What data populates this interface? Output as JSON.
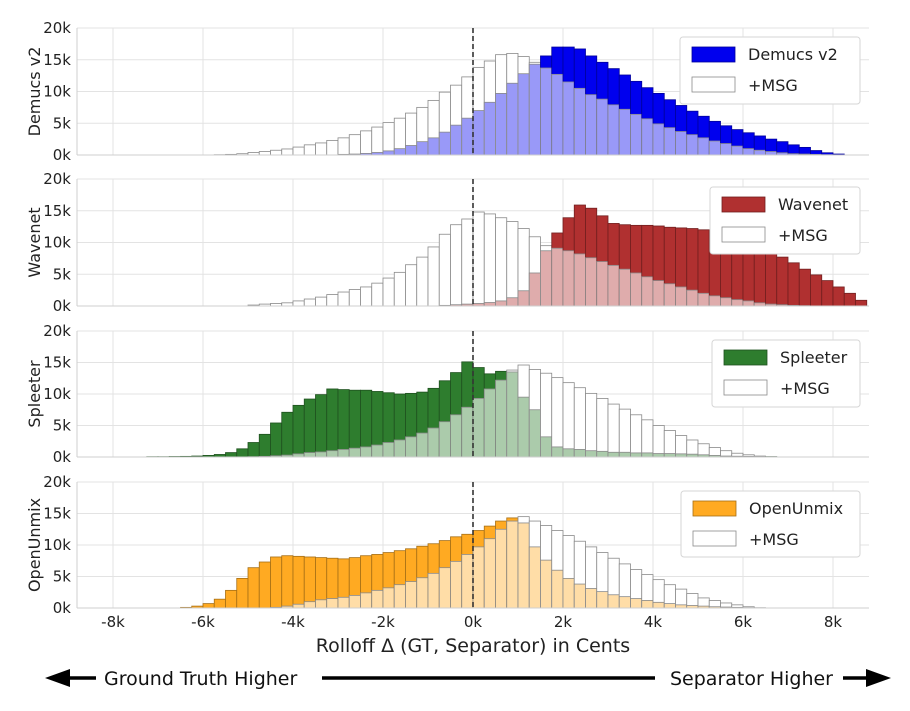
{
  "chart_data": {
    "type": "bar",
    "xlabel": "Rolloff Δ (GT, Separator) in Cents",
    "x_ticks": [
      "-8k",
      "-6k",
      "-4k",
      "-2k",
      "0k",
      "2k",
      "4k",
      "6k",
      "8k"
    ],
    "x_tick_values": [
      -8000,
      -6000,
      -4000,
      -2000,
      0,
      2000,
      4000,
      6000,
      8000
    ],
    "xlim": [
      -8800,
      8800
    ],
    "ylim": [
      0,
      20000
    ],
    "y_ticks": [
      "0k",
      "5k",
      "10k",
      "15k",
      "20k"
    ],
    "y_tick_values": [
      0,
      5000,
      10000,
      15000,
      20000
    ],
    "grid": true,
    "reference_line_x": 0,
    "bin_width": 250,
    "panels": [
      {
        "ylabel": "Demucs v2",
        "legend": [
          "Demucs v2",
          "+MSG"
        ],
        "color": "#0000ee",
        "base": {
          "start": -5750,
          "values": [
            0,
            0,
            0,
            0,
            0,
            0,
            0,
            0,
            0,
            0,
            0,
            100,
            150,
            250,
            400,
            650,
            1000,
            1500,
            2100,
            2700,
            3600,
            4700,
            5800,
            7000,
            8300,
            9700,
            11300,
            12800,
            14300,
            15600,
            17000,
            17000,
            16700,
            15600,
            14600,
            13600,
            12600,
            11600,
            10600,
            9700,
            8700,
            7800,
            6900,
            6100,
            5300,
            4600,
            4000,
            3500,
            3000,
            2500,
            2100,
            1600,
            1200,
            700,
            350,
            150
          ]
        },
        "msg": {
          "start": -5750,
          "values": [
            50,
            100,
            200,
            400,
            550,
            750,
            950,
            1250,
            1600,
            1900,
            2300,
            2700,
            3200,
            3800,
            4400,
            5100,
            5800,
            6600,
            7500,
            8600,
            9900,
            11000,
            12300,
            13800,
            14800,
            15800,
            16000,
            15500,
            14600,
            13700,
            12700,
            11500,
            10500,
            9500,
            8800,
            7900,
            7200,
            6400,
            5700,
            4900,
            4300,
            3700,
            3200,
            2700,
            2200,
            1800,
            1400,
            1000,
            750,
            550,
            350,
            200,
            150,
            100,
            50,
            0
          ]
        }
      },
      {
        "ylabel": "Wavenet",
        "legend": [
          "Wavenet",
          "+MSG"
        ],
        "color": "#b03030",
        "base": {
          "start": -5000,
          "values": [
            0,
            0,
            0,
            0,
            0,
            0,
            0,
            0,
            0,
            0,
            0,
            0,
            0,
            0,
            0,
            0,
            0,
            100,
            200,
            300,
            400,
            550,
            800,
            1300,
            2400,
            5200,
            8700,
            11500,
            13900,
            15900,
            15400,
            14200,
            13000,
            12800,
            12700,
            12700,
            12600,
            12400,
            12300,
            12200,
            12000,
            11800,
            11400,
            10900,
            10400,
            9400,
            8600,
            7700,
            6800,
            5800,
            4900,
            4000,
            3000,
            2000,
            900
          ]
        },
        "msg": {
          "start": -5000,
          "values": [
            150,
            300,
            400,
            500,
            800,
            1100,
            1400,
            1800,
            2200,
            2600,
            3000,
            3600,
            4400,
            5300,
            6500,
            7700,
            9300,
            11300,
            12800,
            13700,
            14800,
            14500,
            13900,
            13300,
            12200,
            10900,
            9500,
            9100,
            8700,
            8200,
            7600,
            7000,
            6400,
            5800,
            5200,
            4600,
            4000,
            3500,
            3000,
            2500,
            2000,
            1600,
            1300,
            1000,
            800,
            500,
            300,
            200,
            100,
            50,
            0,
            0,
            0,
            0,
            0
          ]
        }
      },
      {
        "ylabel": "Spleeter",
        "legend": [
          "Spleeter",
          "+MSG"
        ],
        "color": "#2e7d2e",
        "base": {
          "start": -7250,
          "values": [
            50,
            50,
            80,
            100,
            150,
            250,
            400,
            700,
            1300,
            2300,
            3600,
            5400,
            7100,
            8200,
            9200,
            9900,
            10800,
            10700,
            10600,
            10600,
            10400,
            10200,
            10000,
            10100,
            10300,
            10900,
            12100,
            13400,
            15100,
            14200,
            13200,
            13600,
            13500,
            9500,
            7500,
            3200,
            1600,
            1300,
            1200,
            1000,
            900,
            750,
            750,
            650,
            650,
            550,
            550,
            500,
            450,
            350,
            250,
            150,
            120,
            100,
            80,
            50,
            0
          ]
        },
        "msg": {
          "start": -7250,
          "values": [
            0,
            0,
            0,
            0,
            0,
            0,
            0,
            0,
            0,
            50,
            100,
            200,
            300,
            500,
            700,
            800,
            1000,
            1200,
            1400,
            1600,
            1900,
            2300,
            2700,
            3200,
            3800,
            4600,
            5600,
            6700,
            7900,
            9300,
            10800,
            12200,
            13800,
            14600,
            13900,
            13300,
            12600,
            11800,
            11000,
            10100,
            9300,
            8400,
            7600,
            6700,
            5900,
            5000,
            4200,
            3400,
            2700,
            2100,
            1500,
            1000,
            600,
            350,
            150,
            50,
            0
          ]
        }
      },
      {
        "ylabel": "OpenUnmix",
        "legend": [
          "OpenUnmix",
          "+MSG"
        ],
        "color": "#ffaa22",
        "base": {
          "start": -6500,
          "values": [
            100,
            300,
            700,
            1400,
            2800,
            4700,
            6400,
            7300,
            8100,
            8300,
            8200,
            8100,
            8000,
            7900,
            7800,
            8000,
            8300,
            8500,
            8800,
            9100,
            9400,
            9800,
            10200,
            10700,
            11300,
            11700,
            12300,
            13000,
            13800,
            14300,
            13500,
            9700,
            7600,
            6000,
            4700,
            3800,
            3100,
            2600,
            2100,
            1800,
            1500,
            1200,
            900,
            700,
            500,
            400,
            300,
            200,
            150,
            100,
            50,
            0
          ]
        },
        "msg": {
          "start": -6500,
          "values": [
            0,
            0,
            0,
            0,
            0,
            0,
            0,
            0,
            100,
            300,
            600,
            1000,
            1300,
            1500,
            1700,
            2000,
            2400,
            2800,
            3200,
            3700,
            4200,
            4800,
            5500,
            6400,
            7400,
            8500,
            9700,
            11000,
            12500,
            13800,
            14500,
            13800,
            13100,
            12300,
            11500,
            10600,
            9700,
            8800,
            7900,
            7000,
            6100,
            5300,
            4500,
            3700,
            3000,
            2300,
            1600,
            1200,
            800,
            500,
            200,
            50
          ]
        }
      }
    ],
    "annotations": {
      "left_arrow_label": "Ground Truth Higher",
      "right_arrow_label": "Separator Higher"
    }
  }
}
